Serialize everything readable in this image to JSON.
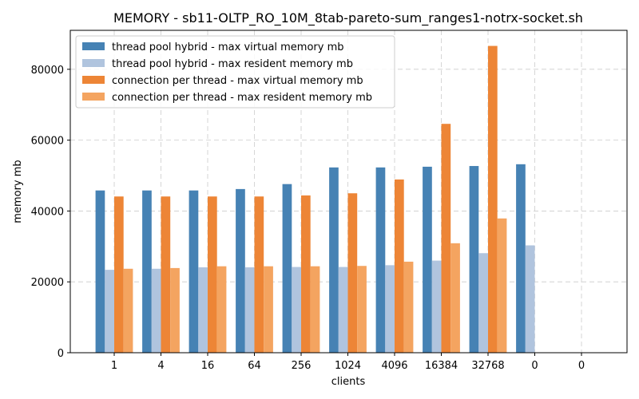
{
  "chart_data": {
    "type": "bar",
    "title": "MEMORY - sb11-OLTP_RO_10M_8tab-pareto-sum_ranges1-notrx-socket.sh",
    "xlabel": "clients",
    "ylabel": "memory mb",
    "categories": [
      "1",
      "4",
      "16",
      "64",
      "256",
      "1024",
      "4096",
      "16384",
      "32768",
      "0",
      "0"
    ],
    "ylim": [
      0,
      91000
    ],
    "yticks": [
      0,
      20000,
      40000,
      60000,
      80000
    ],
    "grid": true,
    "legend_position": "top-left",
    "series": [
      {
        "name": "thread pool hybrid - max virtual memory mb",
        "color": "#4682b4",
        "values": [
          45800,
          45800,
          45800,
          46200,
          47600,
          52300,
          52300,
          52500,
          52700,
          53200,
          null
        ]
      },
      {
        "name": "thread pool hybrid - max resident memory mb",
        "color": "#b0c4de",
        "values": [
          23400,
          23700,
          24100,
          24100,
          24200,
          24200,
          24700,
          26000,
          28100,
          30300,
          null
        ]
      },
      {
        "name": "connection per thread - max virtual memory mb",
        "color": "#ed8536",
        "values": [
          44100,
          44100,
          44100,
          44100,
          44400,
          45000,
          48900,
          64600,
          86600,
          null,
          null
        ]
      },
      {
        "name": "connection per thread - max resident memory mb",
        "color": "#f4a460",
        "values": [
          23700,
          23900,
          24400,
          24400,
          24400,
          24500,
          25700,
          30900,
          37900,
          null,
          null
        ]
      }
    ]
  }
}
